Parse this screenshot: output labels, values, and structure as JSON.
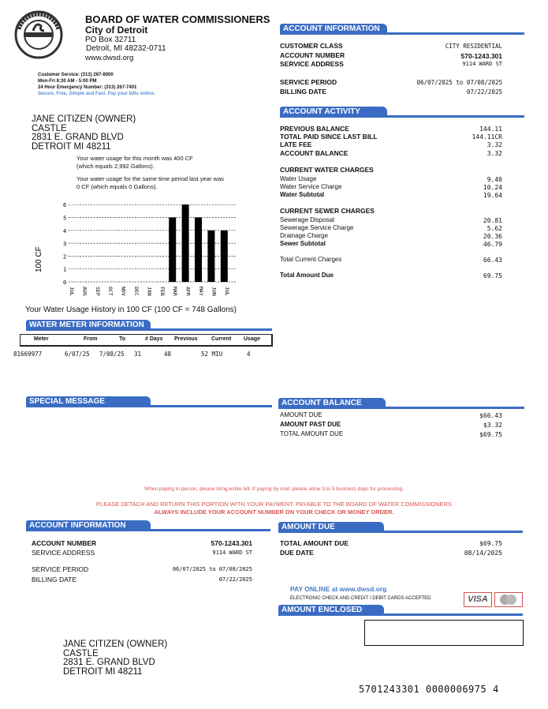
{
  "org": {
    "name": "BOARD OF WATER COMMISSIONERS",
    "city": "City of Detroit",
    "po_box": "PO Box 32711",
    "city_line": "Detroit, MI 48232-0711",
    "website": "www.dwsd.org",
    "logo_text": "WATER & SEWERAGE DEPT. DETROIT"
  },
  "contact": {
    "customer_service": "Customer Service: (313) 267-8000",
    "hours": "Mon-Fri 8:30 AM - 5:00 PM",
    "emergency": "24 Hour Emergency Number: (313) 267-7401",
    "slogan": "Secure, Free, Simple and Fast.  Pay your bills online."
  },
  "customer": {
    "name": "JANE CITIZEN (OWNER)",
    "line2": "CASTLE",
    "street": "2831 E. GRAND BLVD",
    "city": "DETROIT MI 48211"
  },
  "usage_text": {
    "this_month_1": "Your water usage for this month was 400 CF",
    "this_month_2": "(which equals 2,992 Gallons).",
    "last_year_1": "Your water usage for the same time period last year was",
    "last_year_2": "0 CF (which equals 0 Gallons)."
  },
  "chart_data": {
    "type": "bar",
    "ylabel": "100 CF",
    "caption": "Your Water Usage History in 100 CF (100 CF = 748 Gallons)",
    "categories": [
      "JUL",
      "AUG",
      "SEP",
      "OCT",
      "NOV",
      "DEC",
      "JAN",
      "FEB",
      "MAR",
      "APR",
      "MAY",
      "JUN",
      "JUL"
    ],
    "values": [
      0,
      0,
      0,
      0,
      0,
      0,
      0,
      0,
      5,
      6,
      5,
      4,
      4
    ],
    "ylim": [
      0,
      6
    ],
    "yticks": [
      "0",
      "1",
      "2",
      "3",
      "4",
      "5",
      "6"
    ],
    "grid": true
  },
  "meter": {
    "title": "WATER METER INFORMATION",
    "columns": [
      "Meter",
      "From",
      "To",
      "# Days",
      "Previous",
      "Current",
      "Usage"
    ],
    "row": {
      "meter": "81669977",
      "from": "6/07/25",
      "to": "7/08/25",
      "days": "31",
      "previous": "48",
      "current": "52 MIU",
      "usage": "4"
    }
  },
  "special_message": {
    "title": "SPECIAL MESSAGE"
  },
  "account_info": {
    "title": "ACCOUNT INFORMATION",
    "customer_class_label": "CUSTOMER  CLASS",
    "customer_class": "CITY RESIDENTIAL",
    "account_number_label": "ACCOUNT NUMBER",
    "account_number": "570-1243.301",
    "service_address_label": "SERVICE ADDRESS",
    "service_address": "9114 WARD ST",
    "service_period_label": "SERVICE PERIOD",
    "service_period": "06/07/2025 to 07/08/2025",
    "billing_date_label": "BILLING DATE",
    "billing_date": "07/22/2025"
  },
  "activity": {
    "title": "ACCOUNT ACTIVITY",
    "rows": [
      {
        "label": "PREVIOUS BALANCE",
        "value": "144.11"
      },
      {
        "label": "TOTAL PAID SINCE LAST BILL",
        "value": "144.11CR"
      },
      {
        "label": "LATE FEE",
        "value": "3.32"
      },
      {
        "label": "ACCOUNT BALANCE",
        "value": "3.32"
      }
    ],
    "water_title": "CURRENT WATER CHARGES",
    "water": [
      {
        "label": "Water Usage",
        "value": "9.40"
      },
      {
        "label": "Water Service Charge",
        "value": "10.24"
      },
      {
        "label": "Water Subtotal",
        "value": "19.64"
      }
    ],
    "sewer_title": "CURRENT SEWER CHARGES",
    "sewer": [
      {
        "label": "Sewerage Disposal",
        "value": "20.81"
      },
      {
        "label": "Sewerage Service Charge",
        "value": "5.62"
      },
      {
        "label": "Drainage Charge",
        "value": "20.36"
      },
      {
        "label": "Sewer Subtotal",
        "value": "46.79"
      }
    ],
    "total_current_label": "Total Current Charges",
    "total_current": "66.43",
    "total_due_label": "Total Amount Due",
    "total_due": "69.75"
  },
  "balance": {
    "title": "ACCOUNT BALANCE",
    "rows": [
      {
        "label": "AMOUNT DUE",
        "value": "$66.43"
      },
      {
        "label": "AMOUNT PAST DUE",
        "value": "$3.32"
      },
      {
        "label": "TOTAL AMOUNT DUE",
        "value": "$69.75"
      }
    ]
  },
  "notices": {
    "line1": "When paying in person, please bring entire bill.  If paying by mail, please allow 3 to 5 business days for processing.",
    "line2": "PLEASE DETACH AND RETURN THIS PORTION WITH YOUR PAYMENT. PAYABLE TO THE BOARD OF WATER COMMISSIONERS",
    "line3": "ALWAYS INCLUDE YOUR ACCOUNT NUMBER ON YOUR CHECK OR MONEY ORDER."
  },
  "stub": {
    "amount_due_title": "AMOUNT DUE",
    "total_due_label": "TOTAL AMOUNT DUE",
    "total_due": "$69.75",
    "due_date_label": "DUE DATE",
    "due_date": "08/14/2025",
    "pay_online": "PAY ONLINE at www.dwsd.org",
    "accepted": "ELECTRONIC CHECK AND CREDIT / DEBIT CARDS ACCEPTED",
    "visa": "VISA",
    "mastercard": "MasterCard",
    "amount_enclosed_title": "AMOUNT ENCLOSED",
    "amount_enclosed": "",
    "scanline": "5701243301 0000006975 4"
  },
  "colors": {
    "accent": "#3b6cc4",
    "notice": "#d9534f"
  }
}
